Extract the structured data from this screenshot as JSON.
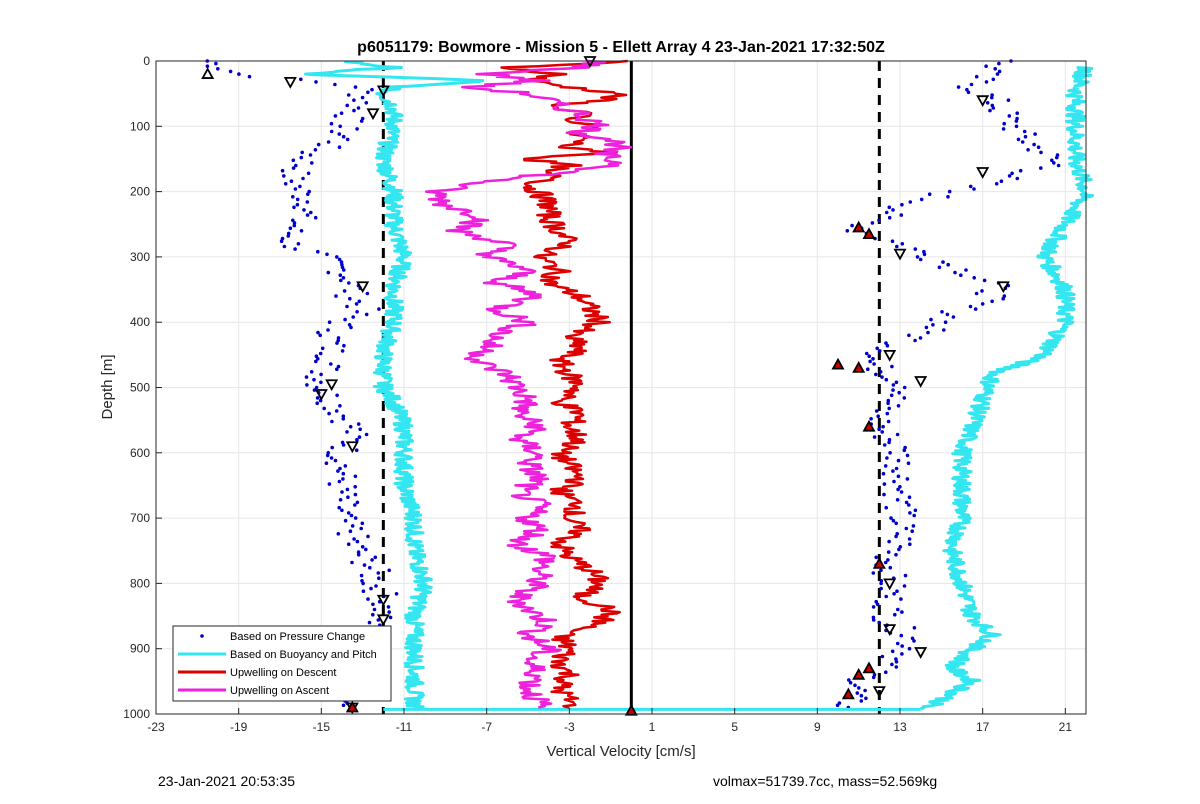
{
  "chart_data": {
    "type": "scatter",
    "title": "p6051179: Bowmore - Mission 5 - Ellett Array 4 23-Jan-2021 17:32:50Z",
    "xlabel": "Vertical Velocity [cm/s]",
    "ylabel": "Depth [m]",
    "xlim": [
      -23,
      22
    ],
    "ylim": [
      0,
      1000
    ],
    "y_reversed": true,
    "xticks": [
      -23,
      -19,
      -15,
      -11,
      -7,
      -3,
      1,
      5,
      9,
      13,
      17,
      21
    ],
    "yticks": [
      0,
      100,
      200,
      300,
      400,
      500,
      600,
      700,
      800,
      900,
      1000
    ],
    "grid": true,
    "legend_position": "bottom-left",
    "reference_lines": [
      {
        "x": -12,
        "style": "dashed",
        "color": "#000000"
      },
      {
        "x": 12,
        "style": "dashed",
        "color": "#000000"
      },
      {
        "x": 0,
        "style": "solid",
        "color": "#000000"
      }
    ],
    "series": [
      {
        "name": "Based on Pressure Change",
        "style": "dots",
        "color": "#0000cc",
        "left_branch": {
          "depth": [
            0,
            20,
            40,
            60,
            80,
            100,
            120,
            140,
            160,
            180,
            200,
            220,
            240,
            260,
            280,
            300,
            320,
            340,
            360,
            380,
            400,
            420,
            440,
            460,
            480,
            500,
            520,
            540,
            560,
            580,
            600,
            620,
            640,
            660,
            680,
            700,
            720,
            740,
            760,
            780,
            800,
            820,
            840,
            860,
            880,
            900,
            920,
            940,
            960,
            980,
            990
          ],
          "velocity": [
            -20.5,
            -19.0,
            -13.0,
            -13.0,
            -13.5,
            -14.0,
            -14.0,
            -15.5,
            -16.0,
            -16.5,
            -16.0,
            -15.5,
            -16.0,
            -16.5,
            -16.5,
            -15.0,
            -14.0,
            -13.5,
            -13.5,
            -13.0,
            -14.0,
            -14.5,
            -14.5,
            -14.5,
            -15.0,
            -15.0,
            -14.5,
            -14.0,
            -13.5,
            -13.5,
            -14.0,
            -14.0,
            -14.0,
            -14.0,
            -14.0,
            -14.0,
            -13.5,
            -13.5,
            -13.0,
            -12.5,
            -12.5,
            -12.0,
            -12.0,
            -12.5,
            -13.5,
            -14.0,
            -14.0,
            -13.0,
            -13.0,
            -13.5,
            -13.5
          ]
        },
        "right_branch": {
          "depth": [
            0,
            20,
            40,
            60,
            80,
            100,
            120,
            140,
            160,
            180,
            200,
            220,
            240,
            260,
            280,
            300,
            320,
            340,
            360,
            380,
            400,
            420,
            440,
            460,
            480,
            500,
            520,
            540,
            560,
            580,
            600,
            620,
            640,
            660,
            680,
            700,
            720,
            740,
            760,
            780,
            800,
            820,
            840,
            860,
            880,
            900,
            920,
            940,
            960,
            980,
            990
          ],
          "velocity": [
            18.0,
            17.0,
            16.5,
            17.5,
            18.0,
            18.5,
            19.0,
            20.0,
            20.5,
            18.0,
            15.5,
            13.5,
            12.0,
            11.0,
            13.0,
            14.5,
            16.0,
            17.5,
            17.5,
            16.0,
            15.0,
            14.0,
            12.5,
            11.5,
            12.5,
            13.5,
            12.5,
            12.0,
            12.0,
            12.5,
            13.0,
            13.0,
            13.0,
            13.0,
            13.0,
            13.0,
            13.0,
            13.0,
            12.5,
            12.5,
            12.5,
            12.5,
            12.5,
            12.5,
            13.5,
            13.5,
            12.5,
            11.5,
            11.0,
            10.5,
            10.5
          ]
        }
      },
      {
        "name": "Based on Buoyancy and Pitch",
        "style": "line",
        "color": "#33e6f0",
        "left_branch": {
          "depth": [
            0,
            10,
            20,
            30,
            40,
            50,
            70,
            100,
            150,
            200,
            250,
            300,
            350,
            400,
            450,
            500,
            520,
            560,
            600,
            650,
            700,
            750,
            800,
            850,
            900,
            950,
            980,
            992
          ],
          "velocity": [
            -14.0,
            -11.5,
            -16.0,
            -7.0,
            -11.5,
            -12.0,
            -11.5,
            -11.5,
            -12.0,
            -11.5,
            -11.5,
            -11.0,
            -11.5,
            -11.5,
            -12.0,
            -12.0,
            -11.5,
            -11.0,
            -11.0,
            -11.0,
            -10.5,
            -10.5,
            -10.0,
            -10.5,
            -10.5,
            -10.5,
            -10.5,
            -10.5
          ]
        },
        "right_branch": {
          "depth": [
            10,
            50,
            100,
            150,
            200,
            250,
            300,
            350,
            400,
            450,
            480,
            520,
            560,
            600,
            650,
            700,
            750,
            800,
            850,
            880,
            900,
            930,
            950,
            980,
            992
          ],
          "velocity": [
            22.0,
            21.5,
            21.5,
            21.5,
            22.0,
            21.0,
            20.0,
            21.0,
            21.0,
            20.0,
            17.5,
            17.0,
            16.5,
            16.0,
            16.0,
            16.0,
            15.5,
            16.0,
            16.5,
            17.5,
            16.5,
            15.5,
            16.5,
            15.0,
            14.0
          ]
        },
        "bottom_line": {
          "depth": 993,
          "from": -12.0,
          "to": 14.0
        }
      },
      {
        "name": "Upwelling on Descent",
        "style": "line",
        "color": "#dd0000",
        "depth": [
          0,
          10,
          20,
          30,
          40,
          50,
          60,
          70,
          80,
          90,
          100,
          110,
          120,
          130,
          140,
          150,
          160,
          170,
          180,
          190,
          200,
          220,
          240,
          260,
          280,
          300,
          320,
          340,
          360,
          380,
          400,
          420,
          440,
          460,
          480,
          500,
          520,
          540,
          560,
          580,
          600,
          620,
          640,
          660,
          680,
          700,
          720,
          740,
          760,
          780,
          800,
          820,
          840,
          860,
          880,
          900,
          920,
          940,
          960,
          980,
          990
        ],
        "velocity": [
          0.0,
          -6.0,
          -3.5,
          -5.0,
          -3.0,
          -0.5,
          -1.5,
          -4.0,
          -2.0,
          -3.5,
          -1.5,
          -3.0,
          -2.0,
          -3.5,
          -1.0,
          -5.0,
          -3.0,
          -4.5,
          -3.5,
          -5.0,
          -4.5,
          -4.0,
          -4.0,
          -3.5,
          -3.0,
          -4.5,
          -3.5,
          -4.0,
          -2.5,
          -2.0,
          -1.5,
          -3.0,
          -2.5,
          -3.5,
          -3.0,
          -2.5,
          -3.5,
          -2.5,
          -3.0,
          -2.5,
          -3.5,
          -3.0,
          -2.5,
          -3.5,
          -2.5,
          -3.0,
          -2.5,
          -3.5,
          -3.0,
          -2.0,
          -1.5,
          -2.5,
          -1.0,
          -1.5,
          -3.5,
          -3.0,
          -3.5,
          -3.0,
          -3.5,
          -3.0,
          -3.0
        ]
      },
      {
        "name": "Upwelling on Ascent",
        "style": "line",
        "color": "#ee22dd",
        "depth": [
          0,
          10,
          20,
          30,
          40,
          50,
          60,
          70,
          80,
          90,
          100,
          110,
          120,
          130,
          140,
          150,
          160,
          170,
          180,
          190,
          200,
          220,
          240,
          260,
          280,
          300,
          320,
          340,
          360,
          380,
          400,
          420,
          440,
          460,
          480,
          500,
          520,
          540,
          560,
          580,
          600,
          620,
          640,
          660,
          680,
          700,
          720,
          740,
          760,
          780,
          800,
          820,
          840,
          860,
          880,
          900,
          920,
          940,
          960,
          980,
          990
        ],
        "velocity": [
          -1.5,
          -2.5,
          -7.0,
          -4.5,
          -8.0,
          -5.0,
          -4.0,
          -3.5,
          -2.5,
          -2.0,
          -1.5,
          -2.5,
          -1.0,
          -0.5,
          -1.5,
          -1.0,
          -0.5,
          -3.0,
          -6.0,
          -8.0,
          -9.5,
          -9.0,
          -7.0,
          -8.5,
          -6.0,
          -7.0,
          -5.0,
          -6.5,
          -4.5,
          -6.5,
          -5.0,
          -6.5,
          -7.0,
          -7.5,
          -6.0,
          -5.5,
          -5.0,
          -5.5,
          -4.5,
          -5.5,
          -4.5,
          -5.0,
          -4.5,
          -5.5,
          -4.5,
          -5.0,
          -4.5,
          -5.5,
          -4.0,
          -4.5,
          -4.5,
          -5.5,
          -5.0,
          -4.0,
          -5.0,
          -4.0,
          -5.0,
          -4.5,
          -5.0,
          -4.5,
          -4.5
        ]
      }
    ],
    "markers": {
      "triangle_down": [
        {
          "v": -2,
          "d": 0
        },
        {
          "v": -16.5,
          "d": 32
        },
        {
          "v": -12,
          "d": 45
        },
        {
          "v": -12.5,
          "d": 80
        },
        {
          "v": -13,
          "d": 345
        },
        {
          "v": -14.5,
          "d": 495
        },
        {
          "v": -15,
          "d": 510
        },
        {
          "v": -13.5,
          "d": 590
        },
        {
          "v": -12,
          "d": 825
        },
        {
          "v": -12,
          "d": 855
        },
        {
          "v": -14,
          "d": 905
        },
        {
          "v": -13.5,
          "d": 960
        },
        {
          "v": -13.5,
          "d": 990
        },
        {
          "v": 17,
          "d": 60
        },
        {
          "v": 17,
          "d": 170
        },
        {
          "v": 13,
          "d": 295
        },
        {
          "v": 18,
          "d": 345
        },
        {
          "v": 12.5,
          "d": 450
        },
        {
          "v": 14,
          "d": 490
        },
        {
          "v": 12.5,
          "d": 800
        },
        {
          "v": 12.5,
          "d": 870
        },
        {
          "v": 14,
          "d": 905
        },
        {
          "v": 12,
          "d": 965
        }
      ],
      "triangle_up": [
        {
          "v": -20.5,
          "d": 20
        }
      ],
      "red_triangle": [
        {
          "v": 0,
          "d": 995
        },
        {
          "v": 11,
          "d": 255
        },
        {
          "v": 11.5,
          "d": 265
        },
        {
          "v": 10,
          "d": 465
        },
        {
          "v": 11,
          "d": 470
        },
        {
          "v": 11.5,
          "d": 560
        },
        {
          "v": 12,
          "d": 770
        },
        {
          "v": 11.5,
          "d": 930
        },
        {
          "v": 11,
          "d": 940
        },
        {
          "v": 10.5,
          "d": 970
        },
        {
          "v": -13.5,
          "d": 990
        }
      ]
    }
  },
  "footer": {
    "timestamp": "23-Jan-2021 20:53:35",
    "stats": "volmax=51739.7cc, mass=52.569kg"
  }
}
